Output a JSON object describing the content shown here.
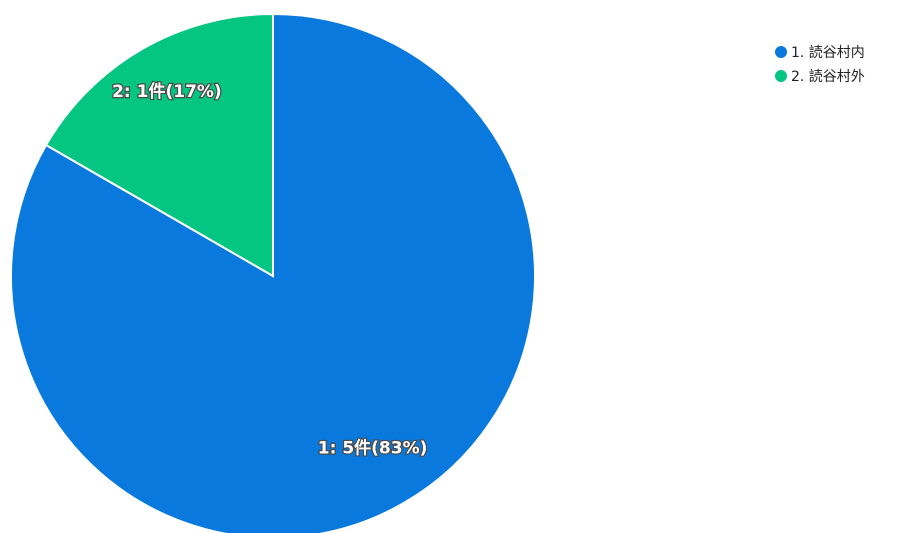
{
  "chart_data": {
    "type": "pie",
    "categories": [
      "1. 読谷村内",
      "2. 読谷村外"
    ],
    "values": [
      5,
      1
    ],
    "slice_labels": [
      "1: 5件(83%)",
      "2: 1件(17%)"
    ],
    "colors": [
      "#0a79dd",
      "#04c582"
    ],
    "legend_position": "top-right",
    "start_angle": "12 o'clock",
    "direction": "clockwise"
  }
}
